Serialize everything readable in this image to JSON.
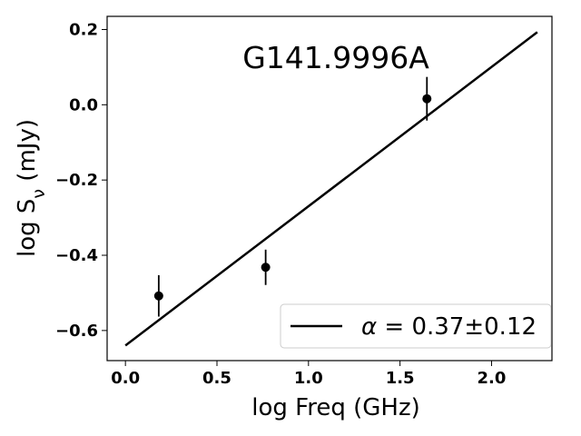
{
  "chart_data": {
    "type": "scatter",
    "title": "G141.9996A",
    "xlabel": "log Freq (GHz)",
    "ylabel_main": "log S",
    "ylabel_sub": "ν",
    "ylabel_unit": " (mJy)",
    "xlim": [
      -0.1,
      2.33
    ],
    "ylim": [
      -0.68,
      0.235
    ],
    "x_ticks": [
      0.0,
      0.5,
      1.0,
      1.5,
      2.0
    ],
    "x_tick_labels": [
      "0.0",
      "0.5",
      "1.0",
      "1.5",
      "2.0"
    ],
    "y_ticks": [
      -0.6,
      -0.4,
      -0.2,
      0.0,
      0.2
    ],
    "y_tick_labels": [
      "−0.6",
      "−0.4",
      "−0.2",
      "0.0",
      "0.2"
    ],
    "points": [
      {
        "x": 0.182,
        "y": -0.508,
        "yerr": 0.055
      },
      {
        "x": 0.766,
        "y": -0.432,
        "yerr": 0.047
      },
      {
        "x": 1.647,
        "y": 0.016,
        "yerr": 0.058
      }
    ],
    "fit_line": {
      "x": [
        0.0,
        2.25
      ],
      "y": [
        -0.64,
        0.193
      ],
      "label_symbol": "α",
      "label_value": " = 0.37±0.12"
    },
    "legend_position": "lower-right",
    "grid": false,
    "colors": {
      "line": "#000000",
      "points": "#000000"
    }
  }
}
